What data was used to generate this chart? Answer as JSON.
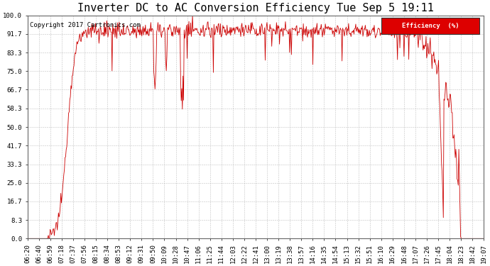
{
  "title": "Inverter DC to AC Conversion Efficiency Tue Sep 5 19:11",
  "copyright": "Copyright 2017 Cartronics.com",
  "legend_label": "Efficiency  (%)",
  "legend_bg": "#dd0000",
  "legend_fg": "#ffffff",
  "line_color": "#cc0000",
  "bg_color": "#ffffff",
  "plot_bg": "#ffffff",
  "grid_color": "#bbbbbb",
  "yticks": [
    0.0,
    8.3,
    16.7,
    25.0,
    33.3,
    41.7,
    50.0,
    58.3,
    66.7,
    75.0,
    83.3,
    91.7,
    100.0
  ],
  "xtick_labels": [
    "06:20",
    "06:40",
    "06:59",
    "07:18",
    "07:37",
    "07:56",
    "08:15",
    "08:34",
    "08:53",
    "09:12",
    "09:31",
    "09:50",
    "10:09",
    "10:28",
    "10:47",
    "11:06",
    "11:25",
    "11:44",
    "12:03",
    "12:22",
    "12:41",
    "13:00",
    "13:19",
    "13:38",
    "13:57",
    "14:16",
    "14:35",
    "14:54",
    "15:13",
    "15:32",
    "15:51",
    "16:10",
    "16:29",
    "16:48",
    "17:07",
    "17:26",
    "17:45",
    "18:04",
    "18:23",
    "18:42",
    "19:07"
  ],
  "ymin": 0.0,
  "ymax": 100.0,
  "title_fontsize": 11,
  "axis_fontsize": 6.5,
  "copyright_fontsize": 6.5
}
